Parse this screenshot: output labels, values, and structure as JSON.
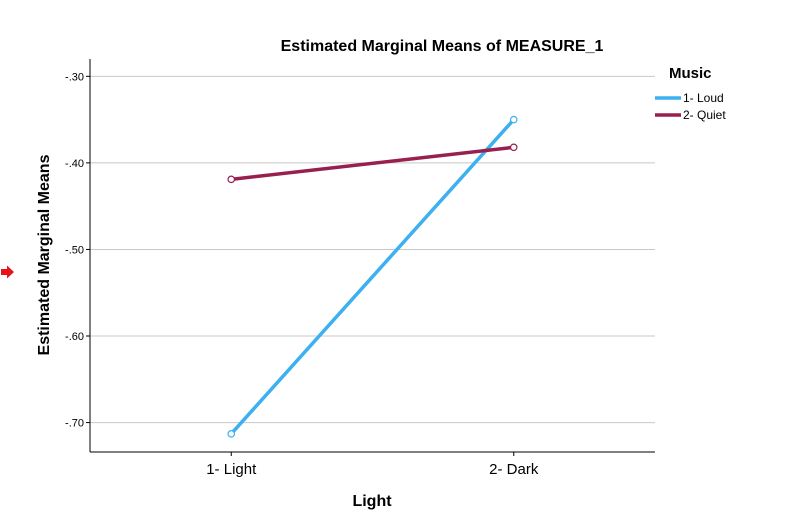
{
  "chart_data": {
    "type": "line",
    "title": "Estimated Marginal Means of MEASURE_1",
    "xlabel": "Light",
    "ylabel": "Estimated Marginal Means",
    "categories": [
      "1- Light",
      "2- Dark"
    ],
    "ylim": [
      -0.734,
      -0.28
    ],
    "yticks": [
      -0.3,
      -0.4,
      -0.5,
      -0.6,
      -0.7
    ],
    "ytick_labels": [
      "-.30",
      "-.40",
      "-.50",
      "-.60",
      "-.70"
    ],
    "grid": true,
    "legend_title": "Music",
    "legend_position": "right",
    "series": [
      {
        "name": "1- Loud",
        "values": [
          -0.713,
          -0.35
        ],
        "color": "#3cb0f0"
      },
      {
        "name": "2- Quiet",
        "values": [
          -0.419,
          -0.382
        ],
        "color": "#991f4e"
      }
    ]
  },
  "marker": {
    "icon": "red-arrow-icon",
    "color": "#e8131a"
  }
}
